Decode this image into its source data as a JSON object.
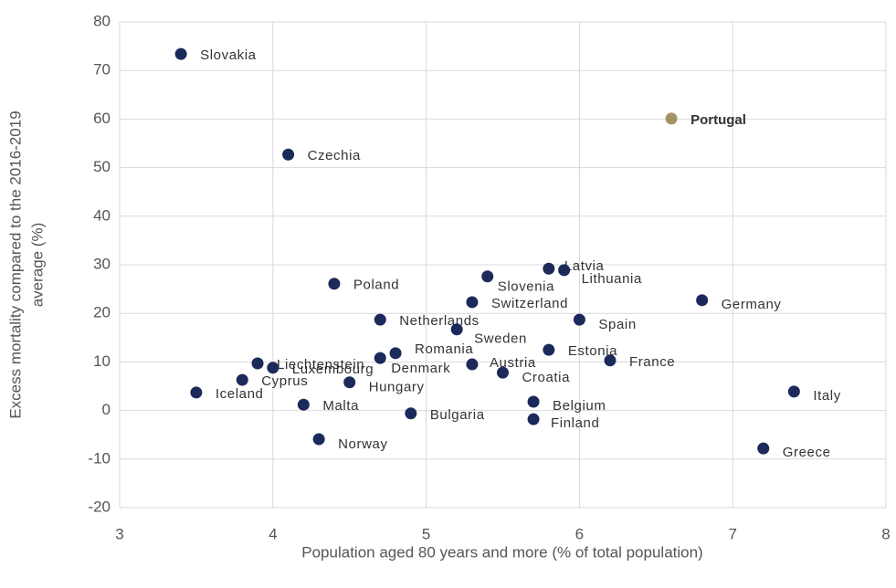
{
  "chart_data": {
    "type": "scatter",
    "xlabel": "Population aged 80 years and more  (% of total population)",
    "ylabel": [
      "Excess mortality compared to the 2016-2019",
      "average (%)"
    ],
    "xlim": [
      3,
      8
    ],
    "xticks": [
      3,
      4,
      5,
      6,
      7,
      8
    ],
    "ylim": [
      -20,
      80
    ],
    "yticks": [
      -20,
      -10,
      0,
      10,
      20,
      30,
      40,
      50,
      60,
      70,
      80
    ],
    "grid": true,
    "color": "#1b2a5a",
    "series": [
      {
        "names": [
          "Slovakia",
          "Czechia",
          "Portugal",
          "Poland",
          "Latvia",
          "Lithuania",
          "Slovenia",
          "Switzerland",
          "Germany",
          "Netherlands",
          "Spain",
          "Sweden",
          "Estonia",
          "Romania",
          "Denmark",
          "Liechtenstein",
          "Luxembourg",
          "France",
          "Austria",
          "Croatia",
          "Hungary",
          "Cyprus",
          "Iceland",
          "Italy",
          "Belgium",
          "Malta",
          "Bulgaria",
          "Finland",
          "Norway",
          "Greece"
        ],
        "x": [
          3.4,
          4.1,
          6.6,
          4.4,
          5.8,
          5.9,
          5.4,
          5.3,
          6.8,
          4.7,
          6.0,
          5.2,
          5.8,
          4.8,
          4.7,
          3.9,
          4.0,
          6.2,
          5.3,
          5.5,
          4.5,
          3.8,
          3.5,
          7.4,
          5.7,
          4.2,
          4.9,
          5.7,
          4.3,
          7.2
        ],
        "values": [
          73.4,
          52.7,
          60.1,
          26.1,
          29.2,
          28.9,
          27.6,
          22.3,
          22.7,
          18.7,
          18.7,
          16.7,
          12.5,
          11.8,
          10.8,
          9.7,
          8.8,
          10.3,
          9.5,
          7.8,
          5.8,
          6.3,
          3.7,
          3.9,
          1.8,
          1.2,
          -0.6,
          -1.8,
          -5.9,
          -7.8
        ],
        "colors": [
          "#1b2a5a",
          "#1b2a5a",
          "#a39563",
          "#1b2a5a",
          "#1b2a5a",
          "#1b2a5a",
          "#1b2a5a",
          "#1b2a5a",
          "#1b2a5a",
          "#1b2a5a",
          "#1b2a5a",
          "#1b2a5a",
          "#1b2a5a",
          "#1b2a5a",
          "#1b2a5a",
          "#1b2a5a",
          "#1b2a5a",
          "#1b2a5a",
          "#1b2a5a",
          "#1b2a5a",
          "#1b2a5a",
          "#1b2a5a",
          "#1b2a5a",
          "#1b2a5a",
          "#1b2a5a",
          "#1b2a5a",
          "#1b2a5a",
          "#1b2a5a",
          "#1b2a5a",
          "#1b2a5a"
        ]
      }
    ]
  }
}
